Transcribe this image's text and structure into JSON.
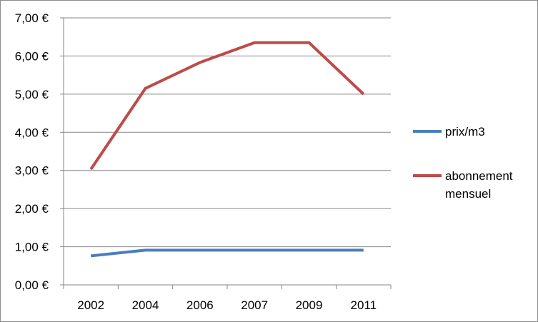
{
  "chart_data": {
    "type": "line",
    "categories": [
      "2002",
      "2004",
      "2006",
      "2007",
      "2009",
      "2011"
    ],
    "series": [
      {
        "name": "prix/m3",
        "color": "#4a7ebb",
        "values": [
          0.76,
          0.91,
          0.91,
          0.91,
          0.91,
          0.91
        ]
      },
      {
        "name": "abonnement mensuel",
        "color": "#be4b48",
        "values": [
          3.03,
          5.15,
          5.83,
          6.35,
          6.35,
          5.0
        ]
      }
    ],
    "y_ticks": [
      "0,00 €",
      "1,00 €",
      "2,00 €",
      "3,00 €",
      "4,00 €",
      "5,00 €",
      "6,00 €",
      "7,00 €"
    ],
    "ylim": [
      0,
      7
    ],
    "grid": true,
    "legend_position": "right"
  }
}
